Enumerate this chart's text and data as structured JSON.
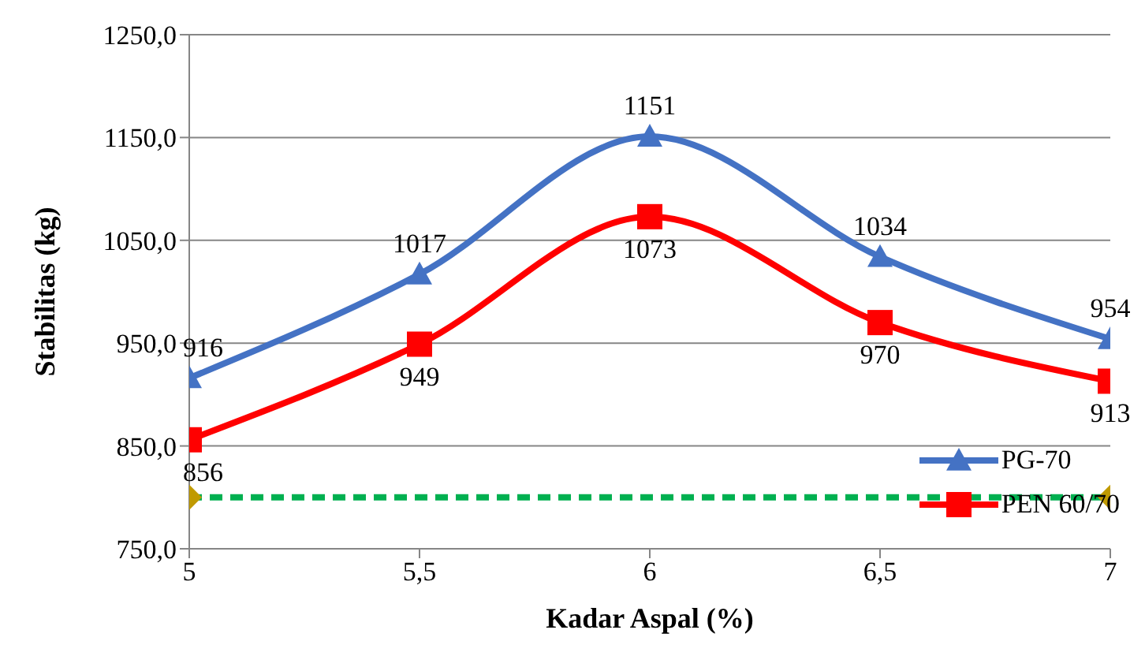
{
  "chart_data": {
    "type": "line",
    "xlabel": "Kadar Aspal (%)",
    "ylabel": "Stabilitas (kg)",
    "x": [
      5,
      5.5,
      6,
      6.5,
      7
    ],
    "xlim": [
      5,
      7
    ],
    "xticks": [
      5,
      {
        "value": 5.5,
        "label": "5,5"
      },
      6,
      {
        "value": 6.5,
        "label": "6,5"
      },
      7
    ],
    "ylim": [
      750,
      1250
    ],
    "yticks": [
      {
        "value": 750,
        "label": "750,0"
      },
      {
        "value": 850,
        "label": "850,0"
      },
      {
        "value": 950,
        "label": "950,0"
      },
      {
        "value": 1050,
        "label": "1050,0"
      },
      {
        "value": 1150,
        "label": "1150,0"
      },
      {
        "value": 1250,
        "label": "1250,0"
      }
    ],
    "series": [
      {
        "name": "PG-70",
        "color": "#4472c4",
        "marker": "triangle",
        "values": [
          916,
          1017,
          1151,
          1034,
          954
        ],
        "value_labels": [
          "916",
          "1017",
          "1151",
          "1034",
          "954"
        ]
      },
      {
        "name": "PEN 60/70",
        "color": "#ff0000",
        "marker": "square",
        "values": [
          856,
          949,
          1073,
          970,
          913
        ],
        "value_labels": [
          "856",
          "949",
          "1073",
          "970",
          "913"
        ]
      },
      {
        "x": [
          5,
          7
        ],
        "color": "#00b050",
        "colors": [
          "#c09a00",
          "#c09a00"
        ],
        "marker": "diamond",
        "line_style": "dashed",
        "values": [
          800,
          800
        ]
      }
    ],
    "grid": "y",
    "legend": "bottom right"
  }
}
